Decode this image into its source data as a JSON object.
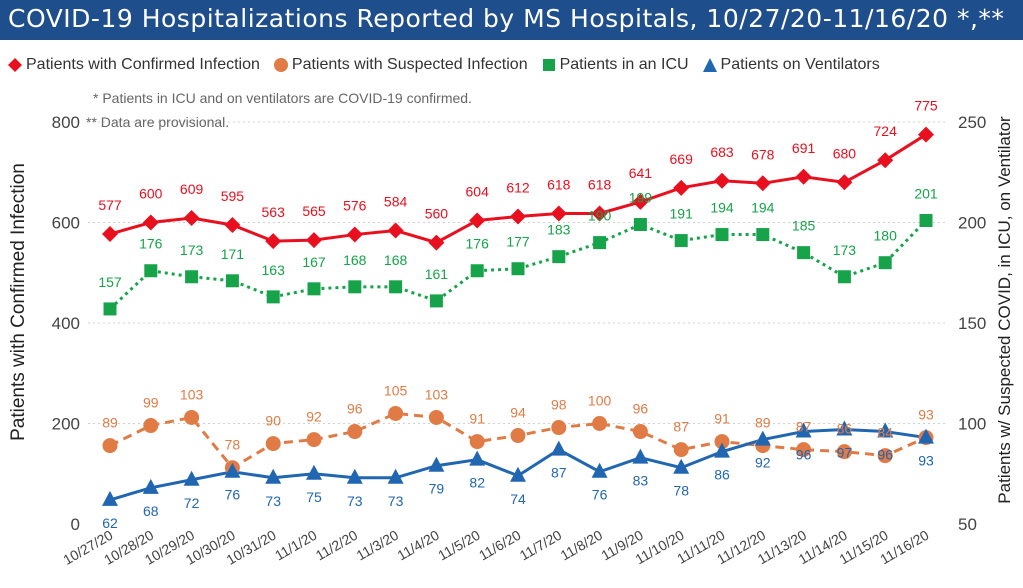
{
  "header": {
    "title": "COVID-19 Hospitalizations Reported by MS Hospitals, 10/27/20-11/16/20 *,**"
  },
  "colors": {
    "title_bg": "#1f4e8c",
    "confirmed": "#e8101f",
    "suspected": "#e07b45",
    "icu": "#16a34a",
    "ventilators": "#2166b0"
  },
  "chart_data": {
    "type": "line",
    "title": "COVID-19 Hospitalizations Reported by MS Hospitals, 10/27/20-11/16/20 *,**",
    "notes": [
      "* Patients in ICU and on ventilators are COVID-19 confirmed.",
      "** Data are provisional."
    ],
    "ylabel_left": "Patients with Confirmed Infection",
    "ylabel_right": "Patients w/ Suspected COVID, in ICU, on Ventilator",
    "ylim_left": [
      0,
      800
    ],
    "yticks_left": [
      "0",
      "200",
      "400",
      "600",
      "800"
    ],
    "ylim_right": [
      50,
      250
    ],
    "yticks_right": [
      "50",
      "100",
      "150",
      "200",
      "250"
    ],
    "grid": true,
    "legend_position": "top",
    "categories": [
      "10/27/20",
      "10/28/20",
      "10/29/20",
      "10/30/20",
      "10/31/20",
      "11/1/20",
      "11/2/20",
      "11/3/20",
      "11/4/20",
      "11/5/20",
      "11/6/20",
      "11/7/20",
      "11/8/20",
      "11/9/20",
      "11/10/20",
      "11/11/20",
      "11/12/20",
      "11/13/20",
      "11/14/20",
      "11/15/20",
      "11/16/20"
    ],
    "series": [
      {
        "name": "Patients with Confirmed Infection",
        "axis": "left",
        "marker": "diamond",
        "line": "solid",
        "color": "#e8101f",
        "values": [
          577,
          600,
          609,
          595,
          563,
          565,
          576,
          584,
          560,
          604,
          612,
          618,
          618,
          641,
          669,
          683,
          678,
          691,
          680,
          724,
          775
        ]
      },
      {
        "name": "Patients with Suspected Infection",
        "axis": "right",
        "marker": "circle",
        "line": "dashed",
        "color": "#e07b45",
        "values": [
          89,
          99,
          103,
          78,
          90,
          92,
          96,
          105,
          103,
          91,
          94,
          98,
          100,
          96,
          87,
          91,
          89,
          87,
          86,
          84,
          93
        ]
      },
      {
        "name": "Patients in an ICU",
        "axis": "right",
        "marker": "square",
        "line": "dotted",
        "color": "#16a34a",
        "values": [
          157,
          176,
          173,
          171,
          163,
          167,
          168,
          168,
          161,
          176,
          177,
          183,
          190,
          199,
          191,
          194,
          194,
          185,
          173,
          180,
          201
        ]
      },
      {
        "name": "Patients on Ventilators",
        "axis": "right",
        "marker": "triangle",
        "line": "solid",
        "color": "#2166b0",
        "values": [
          62,
          68,
          72,
          76,
          73,
          75,
          73,
          73,
          79,
          82,
          74,
          87,
          76,
          83,
          78,
          86,
          92,
          96,
          97,
          96,
          93
        ]
      }
    ]
  }
}
